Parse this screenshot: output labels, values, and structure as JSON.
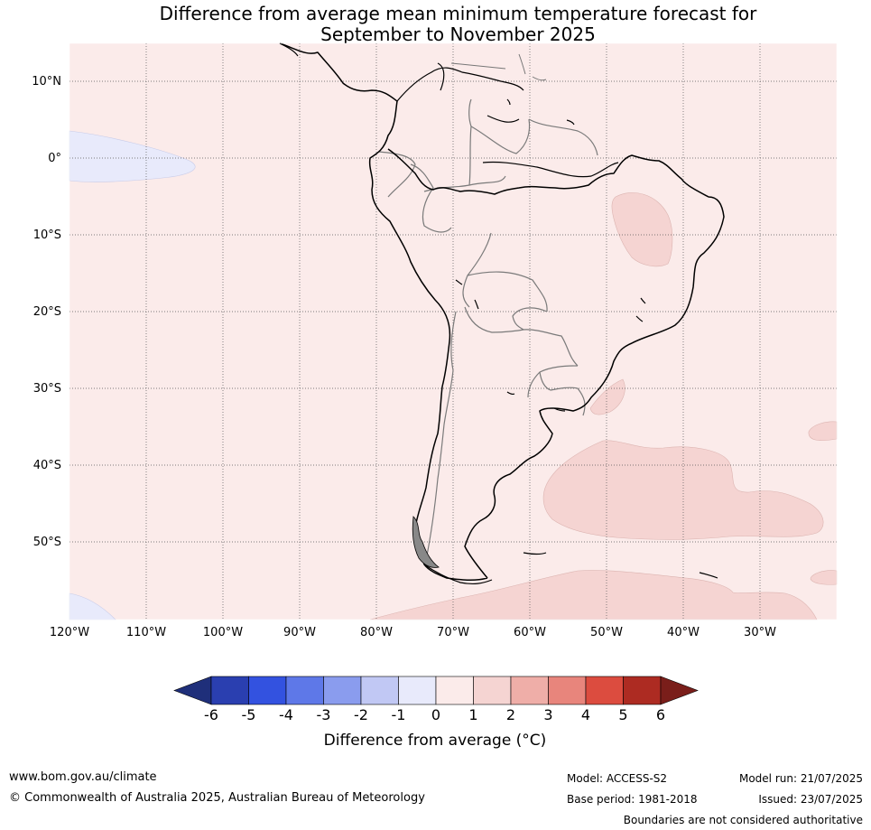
{
  "title": {
    "line1": "Difference from average mean minimum temperature forecast for",
    "line2": "September to November 2025"
  },
  "map": {
    "region": "South America",
    "projection": "plate carree",
    "lon_range": [
      -120,
      -20
    ],
    "lat_range": [
      -60,
      15
    ],
    "latitude_labels": [
      "10°N",
      "0°",
      "10°S",
      "20°S",
      "30°S",
      "40°S",
      "50°S"
    ],
    "longitude_labels": [
      "120°W",
      "110°W",
      "100°W",
      "90°W",
      "80°W",
      "70°W",
      "60°W",
      "50°W",
      "40°W",
      "30°W"
    ],
    "gridlines": true,
    "background_anomaly_class": "0 to 1",
    "background_color": "#fbebea"
  },
  "colorbar": {
    "ticks": [
      "-6",
      "-5",
      "-4",
      "-3",
      "-2",
      "-1",
      "0",
      "1",
      "2",
      "3",
      "4",
      "5",
      "6"
    ],
    "colors": [
      "#1f2f7a",
      "#2a3fb0",
      "#3352e0",
      "#5e78e8",
      "#8a9cee",
      "#c1c8f4",
      "#e8eafb",
      "#fbebea",
      "#f5d4d2",
      "#efaea8",
      "#e8857c",
      "#dc4c3f",
      "#ad2b22",
      "#7a1e1a"
    ],
    "label": "Difference from average (°C)",
    "extend": "both"
  },
  "footer": {
    "website": "www.bom.gov.au/climate",
    "copyright": "© Commonwealth of Australia 2025, Australian Bureau of Meteorology",
    "model": "Model: ACCESS-S2",
    "base_period": "Base period: 1981-2018",
    "model_run": "Model run: 21/07/2025",
    "issued": "Issued: 23/07/2025",
    "disclaimer": "Boundaries are not considered authoritative"
  }
}
